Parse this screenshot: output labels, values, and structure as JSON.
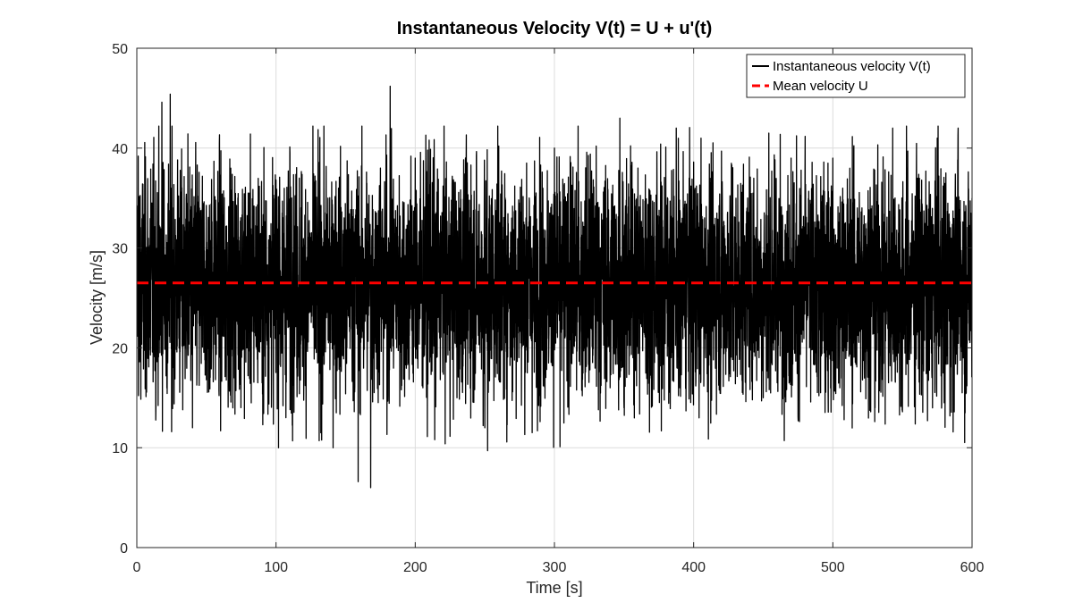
{
  "chart_data": {
    "type": "line",
    "title": "Instantaneous Velocity V(t) = U + u'(t)",
    "xlabel": "Time [s]",
    "ylabel": "Velocity [m/s]",
    "xlim": [
      0,
      600
    ],
    "ylim": [
      0,
      50
    ],
    "xticks": [
      0,
      100,
      200,
      300,
      400,
      500,
      600
    ],
    "yticks": [
      0,
      10,
      20,
      30,
      40,
      50
    ],
    "xtick_labels": [
      "0",
      "100",
      "200",
      "300",
      "400",
      "500",
      "600"
    ],
    "ytick_labels": [
      "0",
      "10",
      "20",
      "30",
      "40",
      "50"
    ],
    "grid": true,
    "legend_position": "top-right",
    "series": [
      {
        "name": "Instantaneous velocity V(t)",
        "color": "#000000",
        "style": "solid",
        "sample_interval_s": 0.1,
        "points": [
          [
            0,
            28.4
          ],
          [
            1,
            39.2
          ],
          [
            2,
            18.6
          ],
          [
            4,
            33.8
          ],
          [
            6,
            15.9
          ],
          [
            10,
            37.9
          ],
          [
            12,
            19.4
          ],
          [
            15,
            32.1
          ],
          [
            18,
            44.6
          ],
          [
            21,
            17.2
          ],
          [
            24,
            45.4
          ],
          [
            25,
            11.6
          ],
          [
            30,
            35.2
          ],
          [
            33,
            13.8
          ],
          [
            38,
            38.1
          ],
          [
            40,
            12.0
          ],
          [
            45,
            34.0
          ],
          [
            50,
            16.8
          ],
          [
            60,
            37.3
          ],
          [
            70,
            17.0
          ],
          [
            80,
            35.5
          ],
          [
            90,
            16.5
          ],
          [
            100,
            36.8
          ],
          [
            105,
            14.2
          ],
          [
            110,
            39.5
          ],
          [
            120,
            16.9
          ],
          [
            128,
            37.2
          ],
          [
            131,
            10.7
          ],
          [
            140,
            36.6
          ],
          [
            150,
            15.4
          ],
          [
            158,
            24.0
          ],
          [
            159,
            6.6
          ],
          [
            165,
            37.6
          ],
          [
            168,
            6.0
          ],
          [
            175,
            38.0
          ],
          [
            182,
            46.2
          ],
          [
            190,
            15.8
          ],
          [
            200,
            39.0
          ],
          [
            205,
            16.2
          ],
          [
            210,
            40.8
          ],
          [
            214,
            10.8
          ],
          [
            220,
            36.2
          ],
          [
            230,
            15.0
          ],
          [
            240,
            38.3
          ],
          [
            250,
            12.0
          ],
          [
            252,
            9.7
          ],
          [
            260,
            40.2
          ],
          [
            270,
            15.6
          ],
          [
            280,
            38.5
          ],
          [
            290,
            14.6
          ],
          [
            300,
            40.0
          ],
          [
            304,
            10.1
          ],
          [
            310,
            37.1
          ],
          [
            320,
            15.2
          ],
          [
            330,
            40.2
          ],
          [
            340,
            16.0
          ],
          [
            347,
            43.0
          ],
          [
            350,
            14.0
          ],
          [
            360,
            38.0
          ],
          [
            370,
            15.5
          ],
          [
            380,
            40.1
          ],
          [
            390,
            16.0
          ],
          [
            400,
            38.6
          ],
          [
            410,
            15.6
          ],
          [
            420,
            39.7
          ],
          [
            430,
            16.4
          ],
          [
            440,
            39.1
          ],
          [
            450,
            15.0
          ],
          [
            454,
            41.5
          ],
          [
            460,
            16.5
          ],
          [
            470,
            39.0
          ],
          [
            475,
            13.1
          ],
          [
            480,
            37.8
          ],
          [
            490,
            15.2
          ],
          [
            500,
            39.0
          ],
          [
            505,
            16.0
          ],
          [
            515,
            40.0
          ],
          [
            520,
            15.6
          ],
          [
            530,
            37.8
          ],
          [
            540,
            16.5
          ],
          [
            543,
            42.0
          ],
          [
            550,
            13.6
          ],
          [
            560,
            37.5
          ],
          [
            568,
            12.7
          ],
          [
            575,
            41.0
          ],
          [
            580,
            14.5
          ],
          [
            590,
            42.0
          ],
          [
            595,
            13.5
          ],
          [
            600,
            35.0
          ]
        ]
      },
      {
        "name": "Mean velocity U",
        "color": "#ff0000",
        "style": "dashed",
        "x": [
          0,
          600
        ],
        "y": [
          26.5,
          26.5
        ]
      }
    ],
    "mean_value": 26.5,
    "fluctuation_sd": 5.8,
    "min_value": 6.0,
    "max_value": 46.2
  }
}
